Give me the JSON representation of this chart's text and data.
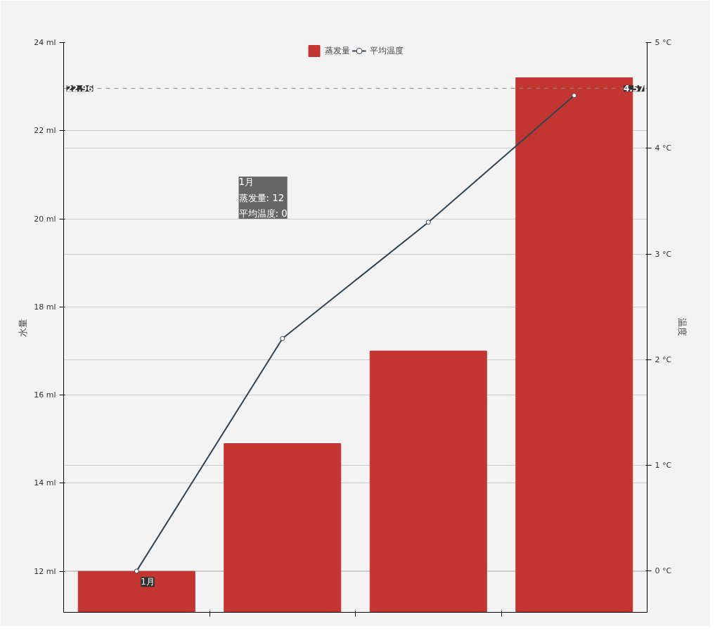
{
  "chart_data": {
    "type": "bar",
    "ylabel": "水量",
    "y2label": "温度",
    "categories": [
      "1月",
      null,
      null,
      null
    ],
    "series": [
      {
        "name": "蒸发量",
        "type": "bar",
        "color": "#c23531",
        "values": [
          12,
          14.9,
          17,
          23.2
        ]
      },
      {
        "name": "平均温度",
        "type": "line",
        "axis": "y2",
        "color": "#2f4554",
        "values": [
          0,
          2.2,
          3.3,
          4.5
        ]
      }
    ],
    "ylim": [
      11.07,
      24
    ],
    "yticks": [
      {
        "value": 12,
        "label": "12 ml"
      },
      {
        "value": 14,
        "label": "14 ml"
      },
      {
        "value": 16,
        "label": "16 ml"
      },
      {
        "value": 18,
        "label": "18 ml"
      },
      {
        "value": 20,
        "label": "20 ml"
      },
      {
        "value": 22,
        "label": "22 ml"
      },
      {
        "value": 24,
        "label": "24 ml"
      }
    ],
    "y2lim": [
      -0.39,
      5
    ],
    "y2ticks": [
      {
        "value": 0,
        "label": "0 °C"
      },
      {
        "value": 1,
        "label": "1 °C"
      },
      {
        "value": 2,
        "label": "2 °C"
      },
      {
        "value": 3,
        "label": "3 °C"
      },
      {
        "value": 4,
        "label": "4 °C"
      },
      {
        "value": 5,
        "label": "5 °C"
      }
    ],
    "ref_lines": [
      {
        "axis": "y",
        "value": 22.96,
        "label": "22.96",
        "line_style": "dashed"
      }
    ],
    "annotations": [
      "1月",
      "蒸发量: 12",
      "平均温度: 0",
      "4.57"
    ],
    "grid": "y",
    "legend": "top",
    "marker": "circle",
    "line_style": "solid"
  }
}
